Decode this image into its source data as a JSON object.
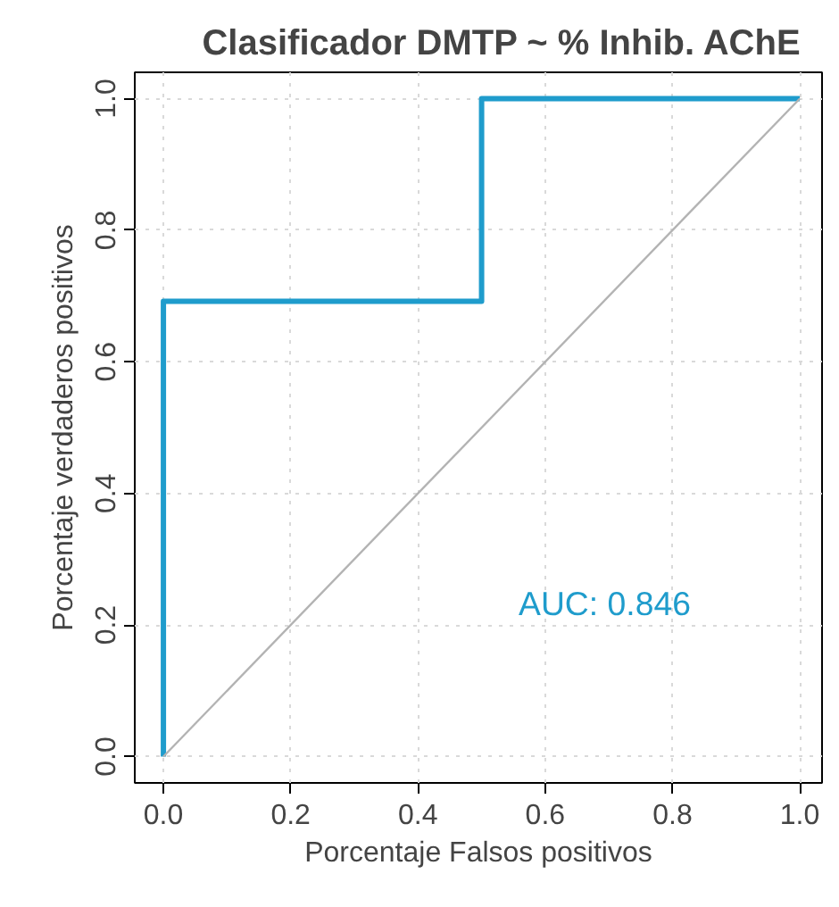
{
  "chart_data": {
    "type": "step",
    "title": "Clasificador DMTP   ~ % Inhib. AChE",
    "xlabel": "Porcentaje Falsos positivos",
    "ylabel": "Porcentaje verdaderos positivos",
    "series": [
      {
        "color": "#1f9ccc",
        "x": [
          0,
          0,
          0.5,
          0.5,
          1
        ],
        "values": [
          0,
          0.692,
          0.692,
          1,
          1
        ]
      },
      {
        "type": "line",
        "color": "#b3b3b3",
        "x": [
          0,
          1
        ],
        "values": [
          0,
          1
        ]
      }
    ],
    "xlim": [
      -0.045,
      1.035
    ],
    "ylim": [
      -0.04,
      1.04
    ],
    "xticks": [
      {
        "value": 0,
        "label": "0.0"
      },
      0.2,
      0.4,
      0.6,
      0.8,
      {
        "value": 1,
        "label": "1.0"
      }
    ],
    "yticks": [
      {
        "value": 0,
        "label": "0.0"
      },
      0.2,
      0.4,
      0.6,
      0.8,
      {
        "value": 1,
        "label": "1.0"
      }
    ],
    "grid": true,
    "marker": "none",
    "line_style": "solid",
    "annotations": [
      "AUC: 0.846"
    ]
  }
}
